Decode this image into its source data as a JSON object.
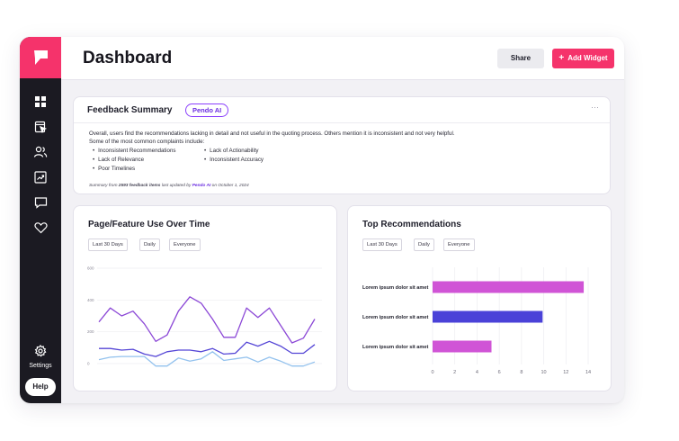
{
  "header": {
    "title": "Dashboard",
    "share_label": "Share",
    "add_widget_label": "Add Widget"
  },
  "sidebar": {
    "icons": [
      "grid-icon",
      "report-icon",
      "users-icon",
      "trend-icon",
      "chat-icon",
      "heart-icon"
    ],
    "settings_label": "Settings",
    "help_label": "Help"
  },
  "feedback": {
    "title": "Feedback Summary",
    "ai_badge": "Pendo AI",
    "summary": "Overall, users find the recommendations lacking in detail and not useful in the quoting process. Others mention it is inconsistent and not very helpful.",
    "complaints_intro": "Some of the most common complaints include:",
    "complaints": [
      "Inconsistent Recommendations",
      "Lack of Relevance",
      "Poor Timelines",
      "Lack of Actionability",
      "Inconsistent Accuracy"
    ],
    "footer": {
      "prefix": "Summary from",
      "count": "2593 feedback items",
      "middle": "last updated by",
      "ai": "Pendo AI",
      "suffix": "on October 1, 2024"
    }
  },
  "line_card": {
    "title": "Page/Feature Use Over Time",
    "filters": [
      "Last 30 Days",
      "Daily",
      "Everyone"
    ]
  },
  "bar_card": {
    "title": "Top Recommendations",
    "filters": [
      "Last 30 Days",
      "Daily",
      "Everyone"
    ]
  },
  "chart_data": [
    {
      "type": "line",
      "title": "Page/Feature Use Over Time",
      "ylim": [
        0,
        600
      ],
      "yticks": [
        "0",
        "200",
        "400",
        "600"
      ],
      "x": [
        1,
        2,
        3,
        4,
        5,
        6,
        7,
        8,
        9,
        10,
        11,
        12,
        13,
        14,
        15,
        16,
        17,
        18,
        19,
        20
      ],
      "series": [
        {
          "color": "#8b47d6",
          "values": [
            262,
            350,
            300,
            330,
            250,
            140,
            180,
            330,
            420,
            380,
            280,
            165,
            165,
            350,
            290,
            350,
            240,
            130,
            160,
            280
          ]
        },
        {
          "color": "#5546d6",
          "values": [
            95,
            95,
            85,
            90,
            60,
            45,
            75,
            85,
            85,
            75,
            95,
            60,
            65,
            135,
            110,
            140,
            110,
            65,
            65,
            120
          ]
        },
        {
          "color": "#93c2ee",
          "values": [
            25,
            40,
            45,
            45,
            45,
            -15,
            -15,
            35,
            15,
            30,
            75,
            20,
            30,
            40,
            10,
            40,
            15,
            -15,
            -15,
            10
          ]
        }
      ],
      "grid": true
    },
    {
      "type": "bar",
      "title": "Top Recommendations",
      "orientation": "horizontal",
      "categories": [
        "Lorem ipsum dolor sit amet",
        "Lorem ipsum dolor sit amet",
        "Lorem ipsum dolor sit amet"
      ],
      "values": [
        13.6,
        9.9,
        5.3
      ],
      "colors": [
        "#d054d6",
        "#4a42d8",
        "#d054d6"
      ],
      "xlim": [
        0,
        14
      ],
      "xticks": [
        0,
        2,
        4,
        6,
        8,
        10,
        12,
        14
      ],
      "grid": true
    }
  ]
}
